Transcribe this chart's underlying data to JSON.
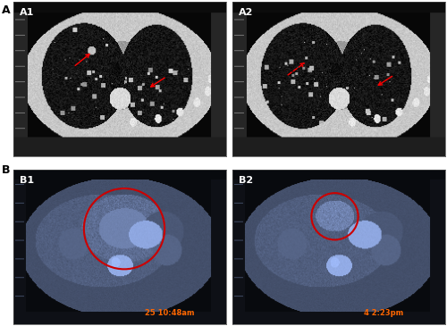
{
  "figure_width": 5.0,
  "figure_height": 3.65,
  "dpi": 100,
  "background_color": "#ffffff",
  "border_color": "#000000",
  "label_A": "A",
  "label_B": "B",
  "label_A1": "A1",
  "label_A2": "A2",
  "label_B1": "B1",
  "label_B2": "B2",
  "label_fontsize": 8,
  "label_fontweight": "bold",
  "label_color_dark": "#000000",
  "label_color_light": "#ffffff",
  "arrow_color": "#ff0000",
  "circle_color": "#cc0000",
  "timestamp1_text": "25 10:48am",
  "timestamp2_text": "4 2:23pm",
  "timestamp_fontsize": 6,
  "timestamp_color": "#ff6600"
}
